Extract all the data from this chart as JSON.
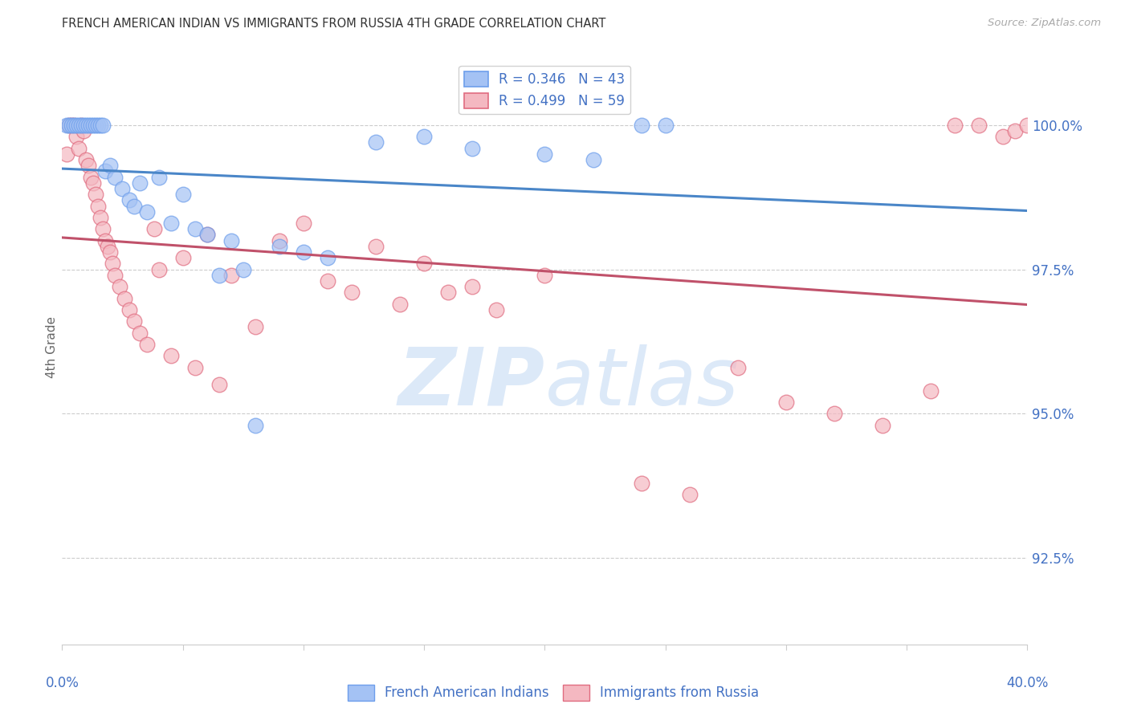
{
  "title": "FRENCH AMERICAN INDIAN VS IMMIGRANTS FROM RUSSIA 4TH GRADE CORRELATION CHART",
  "source": "Source: ZipAtlas.com",
  "ylabel": "4th Grade",
  "ylabel_right_ticks": [
    92.5,
    95.0,
    97.5,
    100.0
  ],
  "ylabel_right_labels": [
    "92.5%",
    "95.0%",
    "97.5%",
    "100.0%"
  ],
  "xmin": 0.0,
  "xmax": 40.0,
  "ymin": 91.0,
  "ymax": 101.3,
  "blue_R": 0.346,
  "blue_N": 43,
  "pink_R": 0.499,
  "pink_N": 59,
  "legend_blue_label": "French American Indians",
  "legend_pink_label": "Immigrants from Russia",
  "blue_color": "#a4c2f4",
  "pink_color": "#f4b8c1",
  "blue_edge_color": "#6d9eeb",
  "pink_edge_color": "#e06c80",
  "blue_line_color": "#4a86c8",
  "pink_line_color": "#c0516a",
  "axis_color": "#4472c4",
  "watermark_color": "#dce9f8",
  "blue_x": [
    0.2,
    0.3,
    0.4,
    0.5,
    0.6,
    0.7,
    0.8,
    0.9,
    1.0,
    1.1,
    1.2,
    1.3,
    1.4,
    1.5,
    1.6,
    1.7,
    1.8,
    2.0,
    2.2,
    2.5,
    2.8,
    3.0,
    3.2,
    3.5,
    4.0,
    4.5,
    5.0,
    5.5,
    6.0,
    6.5,
    7.0,
    7.5,
    8.0,
    9.0,
    10.0,
    11.0,
    13.0,
    15.0,
    17.0,
    20.0,
    22.0,
    24.0,
    25.0
  ],
  "blue_y": [
    100.0,
    100.0,
    100.0,
    100.0,
    100.0,
    100.0,
    100.0,
    100.0,
    100.0,
    100.0,
    100.0,
    100.0,
    100.0,
    100.0,
    100.0,
    100.0,
    99.2,
    99.3,
    99.1,
    98.9,
    98.7,
    98.6,
    99.0,
    98.5,
    99.1,
    98.3,
    98.8,
    98.2,
    98.1,
    97.4,
    98.0,
    97.5,
    94.8,
    97.9,
    97.8,
    97.7,
    99.7,
    99.8,
    99.6,
    99.5,
    99.4,
    100.0,
    100.0
  ],
  "pink_x": [
    0.2,
    0.3,
    0.4,
    0.5,
    0.6,
    0.7,
    0.8,
    0.9,
    1.0,
    1.1,
    1.2,
    1.3,
    1.4,
    1.5,
    1.6,
    1.7,
    1.8,
    1.9,
    2.0,
    2.1,
    2.2,
    2.4,
    2.6,
    2.8,
    3.0,
    3.2,
    3.5,
    3.8,
    4.0,
    4.5,
    5.0,
    5.5,
    6.0,
    6.5,
    7.0,
    8.0,
    9.0,
    10.0,
    11.0,
    12.0,
    13.0,
    14.0,
    15.0,
    16.0,
    17.0,
    18.0,
    20.0,
    24.0,
    26.0,
    28.0,
    30.0,
    32.0,
    34.0,
    36.0,
    37.0,
    38.0,
    39.0,
    39.5,
    40.0
  ],
  "pink_y": [
    99.5,
    100.0,
    100.0,
    100.0,
    99.8,
    99.6,
    100.0,
    99.9,
    99.4,
    99.3,
    99.1,
    99.0,
    98.8,
    98.6,
    98.4,
    98.2,
    98.0,
    97.9,
    97.8,
    97.6,
    97.4,
    97.2,
    97.0,
    96.8,
    96.6,
    96.4,
    96.2,
    98.2,
    97.5,
    96.0,
    97.7,
    95.8,
    98.1,
    95.5,
    97.4,
    96.5,
    98.0,
    98.3,
    97.3,
    97.1,
    97.9,
    96.9,
    97.6,
    97.1,
    97.2,
    96.8,
    97.4,
    93.8,
    93.6,
    95.8,
    95.2,
    95.0,
    94.8,
    95.4,
    100.0,
    100.0,
    99.8,
    99.9,
    100.0
  ]
}
